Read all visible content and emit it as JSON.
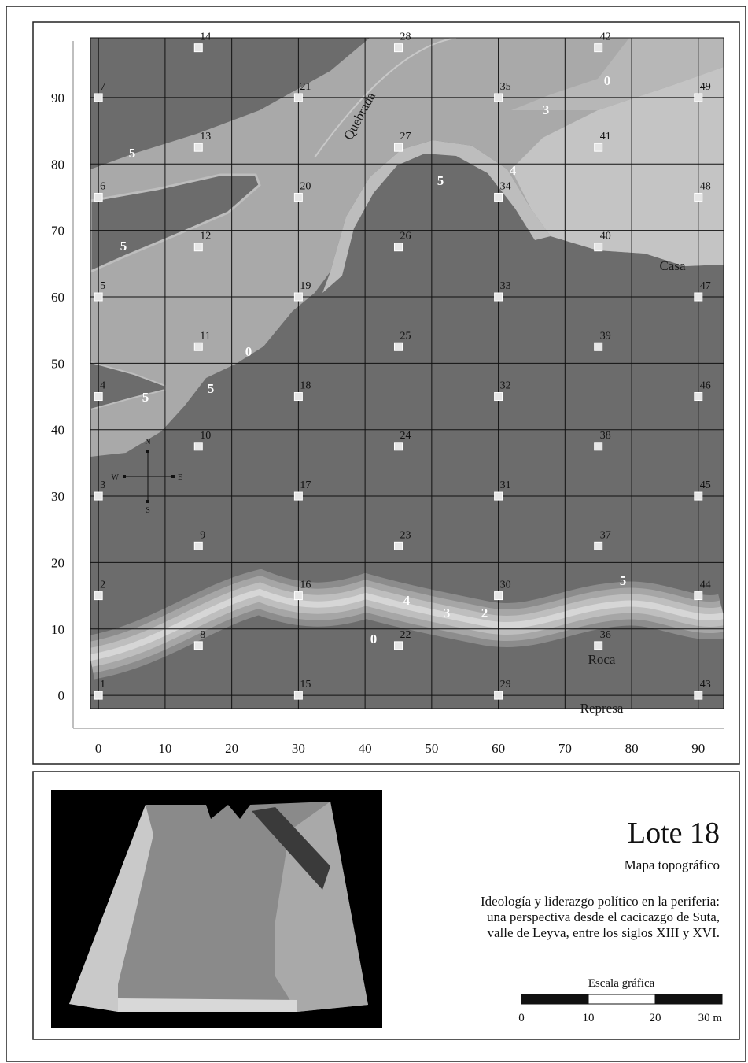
{
  "map": {
    "xlim": [
      -1.2,
      93.8
    ],
    "ylim": [
      -2,
      99
    ],
    "xticks": [
      0,
      10,
      20,
      30,
      40,
      50,
      60,
      70,
      80,
      90
    ],
    "yticks": [
      0,
      10,
      20,
      30,
      40,
      50,
      60,
      70,
      80,
      90
    ],
    "points": [
      {
        "label": "1",
        "x": 0,
        "y": 0
      },
      {
        "label": "2",
        "x": 0,
        "y": 15
      },
      {
        "label": "3",
        "x": 0,
        "y": 30
      },
      {
        "label": "4",
        "x": 0,
        "y": 45
      },
      {
        "label": "5",
        "x": 0,
        "y": 60
      },
      {
        "label": "6",
        "x": 0,
        "y": 75
      },
      {
        "label": "7",
        "x": 0,
        "y": 90
      },
      {
        "label": "8",
        "x": 15,
        "y": 7.5
      },
      {
        "label": "9",
        "x": 15,
        "y": 22.5
      },
      {
        "label": "10",
        "x": 15,
        "y": 37.5
      },
      {
        "label": "11",
        "x": 15,
        "y": 52.5
      },
      {
        "label": "12",
        "x": 15,
        "y": 67.5
      },
      {
        "label": "13",
        "x": 15,
        "y": 82.5
      },
      {
        "label": "14",
        "x": 15,
        "y": 97.5
      },
      {
        "label": "15",
        "x": 30,
        "y": 0
      },
      {
        "label": "16",
        "x": 30,
        "y": 15
      },
      {
        "label": "17",
        "x": 30,
        "y": 30
      },
      {
        "label": "18",
        "x": 30,
        "y": 45
      },
      {
        "label": "19",
        "x": 30,
        "y": 60
      },
      {
        "label": "20",
        "x": 30,
        "y": 75
      },
      {
        "label": "21",
        "x": 30,
        "y": 90
      },
      {
        "label": "22",
        "x": 45,
        "y": 7.5
      },
      {
        "label": "23",
        "x": 45,
        "y": 22.5
      },
      {
        "label": "24",
        "x": 45,
        "y": 37.5
      },
      {
        "label": "25",
        "x": 45,
        "y": 52.5
      },
      {
        "label": "26",
        "x": 45,
        "y": 67.5
      },
      {
        "label": "27",
        "x": 45,
        "y": 82.5
      },
      {
        "label": "28",
        "x": 45,
        "y": 97.5
      },
      {
        "label": "29",
        "x": 60,
        "y": 0
      },
      {
        "label": "30",
        "x": 60,
        "y": 15
      },
      {
        "label": "31",
        "x": 60,
        "y": 30
      },
      {
        "label": "32",
        "x": 60,
        "y": 45
      },
      {
        "label": "33",
        "x": 60,
        "y": 60
      },
      {
        "label": "34",
        "x": 60,
        "y": 75
      },
      {
        "label": "35",
        "x": 60,
        "y": 90
      },
      {
        "label": "36",
        "x": 75,
        "y": 7.5
      },
      {
        "label": "37",
        "x": 75,
        "y": 22.5
      },
      {
        "label": "38",
        "x": 75,
        "y": 37.5
      },
      {
        "label": "39",
        "x": 75,
        "y": 52.5
      },
      {
        "label": "40",
        "x": 75,
        "y": 67.5
      },
      {
        "label": "41",
        "x": 75,
        "y": 82.5
      },
      {
        "label": "42",
        "x": 75,
        "y": 97.5
      },
      {
        "label": "43",
        "x": 90,
        "y": 0
      },
      {
        "label": "44",
        "x": 90,
        "y": 15
      },
      {
        "label": "45",
        "x": 90,
        "y": 30
      },
      {
        "label": "46",
        "x": 90,
        "y": 45
      },
      {
        "label": "47",
        "x": 90,
        "y": 60
      },
      {
        "label": "48",
        "x": 90,
        "y": 75
      },
      {
        "label": "49",
        "x": 90,
        "y": 90
      }
    ],
    "contour_labels": [
      "5",
      "5",
      "5",
      "5",
      "0",
      "5",
      "4",
      "3",
      "0",
      "4",
      "3",
      "2",
      "0",
      "5"
    ],
    "places": {
      "quebrada": "Quebrada",
      "casa": "Casa",
      "roca": "Roca",
      "represa": "Represa"
    },
    "compass": {
      "n": "N",
      "s": "S",
      "e": "E",
      "w": "W"
    }
  },
  "info": {
    "title": "Lote 18",
    "subtitle": "Mapa topográfico",
    "description": [
      "Ideología y liderazgo político en la periferia:",
      "una perspectiva desde el cacicazgo de Suta,",
      "valle de Leyva, entre los siglos XIII y XVI."
    ],
    "scale": {
      "title": "Escala gráfica",
      "xlim": [
        0,
        30
      ],
      "ticks": [
        0,
        10,
        20,
        {
          "value": 30,
          "label": "30 m"
        }
      ]
    }
  }
}
